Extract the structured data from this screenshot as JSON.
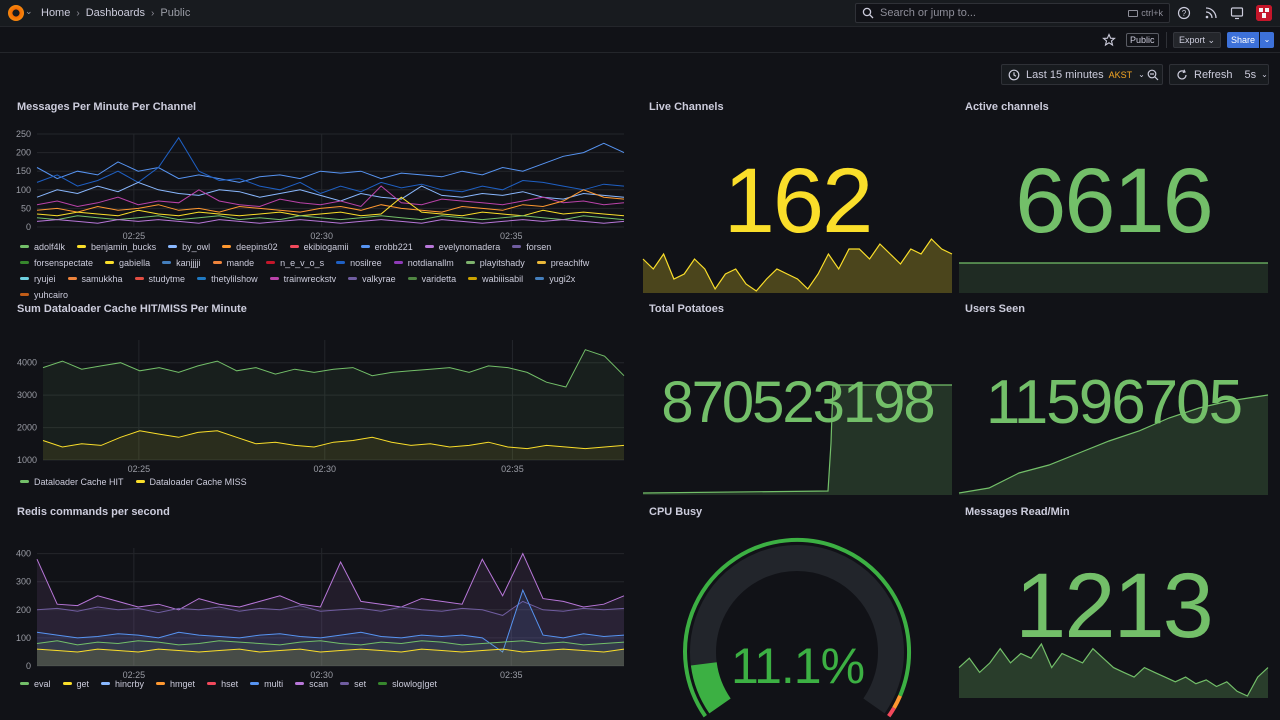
{
  "topbar": {
    "breadcrumbs": [
      "Home",
      "Dashboards",
      "Public"
    ],
    "search_placeholder": "Search or jump to...",
    "search_shortcut": "ctrl+k"
  },
  "subbar": {
    "public_badge": "Public",
    "export_label": "Export",
    "share_label": "Share"
  },
  "time_controls": {
    "range_label": "Last 15 minutes",
    "timezone": "AKST",
    "refresh_label": "Refresh",
    "refresh_interval": "5s"
  },
  "colors": {
    "green": "#73bf69",
    "yellow": "#fade2a",
    "orange": "#ff9830",
    "red": "#f2495c",
    "blue": "#5794f2",
    "purple": "#b877d9"
  },
  "panels": {
    "messages": {
      "title": "Messages Per Minute Per Channel",
      "legend": [
        {
          "name": "adolf4lk",
          "color": "#73bf69"
        },
        {
          "name": "benjamin_bucks",
          "color": "#fade2a"
        },
        {
          "name": "by_owl",
          "color": "#8ab8ff"
        },
        {
          "name": "deepins02",
          "color": "#ff9830"
        },
        {
          "name": "ekibiogamii",
          "color": "#f2495c"
        },
        {
          "name": "erobb221",
          "color": "#5794f2"
        },
        {
          "name": "evelynomadera",
          "color": "#b877d9"
        },
        {
          "name": "forsen",
          "color": "#705da0"
        },
        {
          "name": "forsenspectate",
          "color": "#37872d"
        },
        {
          "name": "gabiella",
          "color": "#fade2a"
        },
        {
          "name": "kanjjjji",
          "color": "#447ebc"
        },
        {
          "name": "mande",
          "color": "#ef843c"
        },
        {
          "name": "n_e_v_o_s",
          "color": "#c4162a"
        },
        {
          "name": "nosilree",
          "color": "#1f60c4"
        },
        {
          "name": "notdianallm",
          "color": "#8f3bb8"
        },
        {
          "name": "playitshady",
          "color": "#7eb26d"
        },
        {
          "name": "preachlfw",
          "color": "#eab839"
        },
        {
          "name": "ryujei",
          "color": "#6ed0e0"
        },
        {
          "name": "samukkha",
          "color": "#ef843c"
        },
        {
          "name": "studytme",
          "color": "#e24d42"
        },
        {
          "name": "thetylilshow",
          "color": "#1f78c1"
        },
        {
          "name": "trainwreckstv",
          "color": "#ba43a9"
        },
        {
          "name": "valkyrae",
          "color": "#705da0"
        },
        {
          "name": "varidetta",
          "color": "#508642"
        },
        {
          "name": "wabiiisabil",
          "color": "#cca300"
        },
        {
          "name": "yugi2x",
          "color": "#447ebc"
        },
        {
          "name": "yuhcairo",
          "color": "#c15c17"
        }
      ]
    },
    "dataloader": {
      "title": "Sum Dataloader Cache HIT/MISS Per Minute",
      "legend": [
        {
          "name": "Dataloader Cache HIT",
          "color": "#73bf69"
        },
        {
          "name": "Dataloader Cache MISS",
          "color": "#fade2a"
        }
      ]
    },
    "redis": {
      "title": "Redis commands per second",
      "legend": [
        {
          "name": "eval",
          "color": "#73bf69"
        },
        {
          "name": "get",
          "color": "#fade2a"
        },
        {
          "name": "hincrby",
          "color": "#8ab8ff"
        },
        {
          "name": "hmget",
          "color": "#ff9830"
        },
        {
          "name": "hset",
          "color": "#f2495c"
        },
        {
          "name": "multi",
          "color": "#5794f2"
        },
        {
          "name": "scan",
          "color": "#b877d9"
        },
        {
          "name": "set",
          "color": "#705da0"
        },
        {
          "name": "slowlog|get",
          "color": "#37872d"
        }
      ]
    },
    "live_channels": {
      "title": "Live Channels",
      "value": "162"
    },
    "active_channels": {
      "title": "Active channels",
      "value": "6616"
    },
    "total_potatoes": {
      "title": "Total Potatoes",
      "value": "870523198"
    },
    "users_seen": {
      "title": "Users Seen",
      "value": "11596705"
    },
    "cpu_busy": {
      "title": "CPU Busy",
      "value": "11.1%",
      "fraction": 0.111
    },
    "messages_read": {
      "title": "Messages Read/Min",
      "value": "1213"
    }
  },
  "chart_data": [
    {
      "type": "line",
      "title": "Messages Per Minute Per Channel",
      "x_ticks": [
        "02:25",
        "02:30",
        "02:35"
      ],
      "ylim": [
        0,
        250
      ],
      "y_ticks": [
        0,
        50,
        100,
        150,
        200,
        250
      ],
      "series": [
        {
          "name": "erobb221",
          "values": [
            160,
            130,
            150,
            140,
            175,
            150,
            160,
            130,
            140,
            130,
            120,
            135,
            140,
            130,
            150,
            145,
            150,
            130,
            145,
            140,
            135,
            150,
            140,
            160,
            150,
            170,
            190,
            200,
            225,
            200
          ]
        },
        {
          "name": "nosilree",
          "values": [
            120,
            140,
            110,
            125,
            150,
            120,
            160,
            240,
            150,
            125,
            130,
            110,
            100,
            120,
            90,
            110,
            95,
            120,
            105,
            115,
            100,
            95,
            110,
            100,
            125,
            120,
            110,
            100,
            115,
            110
          ]
        },
        {
          "name": "by_owl",
          "values": [
            80,
            100,
            90,
            110,
            95,
            120,
            100,
            90,
            85,
            100,
            95,
            80,
            90,
            100,
            85,
            70,
            90,
            80,
            75,
            110,
            85,
            80,
            90,
            85,
            95,
            80,
            75,
            90,
            85,
            80
          ]
        },
        {
          "name": "trainwreckstv",
          "values": [
            60,
            70,
            55,
            65,
            80,
            60,
            70,
            65,
            100,
            70,
            60,
            55,
            75,
            65,
            60,
            70,
            55,
            110,
            65,
            60,
            75,
            70,
            65,
            60,
            70,
            80,
            65,
            70,
            60,
            65
          ]
        },
        {
          "name": "deepins02",
          "values": [
            45,
            50,
            40,
            55,
            45,
            50,
            60,
            45,
            50,
            40,
            55,
            50,
            45,
            40,
            50,
            55,
            45,
            60,
            50,
            45,
            40,
            55,
            50,
            45,
            60,
            55,
            70,
            100,
            80,
            75
          ]
        },
        {
          "name": "benjamin_bucks",
          "values": [
            35,
            30,
            40,
            35,
            30,
            45,
            35,
            30,
            40,
            35,
            30,
            35,
            40,
            30,
            35,
            40,
            30,
            35,
            80,
            40,
            35,
            30,
            40,
            35,
            30,
            45,
            35,
            40,
            35,
            30
          ]
        },
        {
          "name": "adolf4lk",
          "values": [
            25,
            20,
            30,
            25,
            20,
            25,
            30,
            20,
            25,
            30,
            20,
            25,
            20,
            30,
            25,
            20,
            25,
            30,
            25,
            20,
            30,
            25,
            20,
            25,
            30,
            25,
            20,
            30,
            25,
            20
          ]
        },
        {
          "name": "evelynomadera",
          "values": [
            15,
            20,
            15,
            10,
            20,
            15,
            20,
            15,
            10,
            20,
            15,
            10,
            15,
            20,
            15,
            10,
            15,
            20,
            15,
            10,
            20,
            15,
            10,
            15,
            20,
            15,
            20,
            15,
            10,
            15
          ]
        }
      ]
    },
    {
      "type": "area",
      "title": "Sum Dataloader Cache HIT/MISS Per Minute",
      "x_ticks": [
        "02:25",
        "02:30",
        "02:35"
      ],
      "ylim": [
        1000,
        4700
      ],
      "y_ticks": [
        1000,
        2000,
        3000,
        4000
      ],
      "series": [
        {
          "name": "Dataloader Cache HIT",
          "values": [
            3850,
            4050,
            3800,
            3900,
            4000,
            3750,
            3850,
            3700,
            3900,
            4050,
            3750,
            3850,
            3650,
            3800,
            3700,
            3800,
            3850,
            3600,
            3700,
            3750,
            3800,
            3850,
            3700,
            3900,
            3850,
            3700,
            3400,
            3250,
            4400,
            4200,
            3600
          ]
        },
        {
          "name": "Dataloader Cache MISS",
          "values": [
            1600,
            1400,
            1500,
            1450,
            1700,
            1900,
            1800,
            1700,
            1850,
            1900,
            1700,
            1500,
            1550,
            1450,
            1400,
            1550,
            1600,
            1700,
            1550,
            1450,
            1500,
            1400,
            1450,
            1550,
            1400,
            1350,
            1450,
            1400,
            1350,
            1400,
            1450
          ]
        }
      ]
    },
    {
      "type": "area",
      "title": "Redis commands per second",
      "x_ticks": [
        "02:25",
        "02:30",
        "02:35"
      ],
      "ylim": [
        0,
        420
      ],
      "y_ticks": [
        0,
        100,
        200,
        300,
        400
      ],
      "series": [
        {
          "name": "scan",
          "values": [
            380,
            220,
            215,
            250,
            230,
            210,
            220,
            200,
            240,
            220,
            210,
            230,
            250,
            220,
            210,
            370,
            230,
            220,
            210,
            240,
            230,
            220,
            380,
            250,
            400,
            240,
            230,
            210,
            220,
            250
          ]
        },
        {
          "name": "set",
          "values": [
            200,
            205,
            195,
            210,
            200,
            205,
            190,
            205,
            200,
            210,
            195,
            205,
            200,
            215,
            195,
            200,
            205,
            195,
            210,
            200,
            195,
            205,
            200,
            180,
            230,
            200,
            195,
            205,
            200,
            205
          ]
        },
        {
          "name": "multi",
          "values": [
            120,
            110,
            100,
            105,
            115,
            110,
            100,
            120,
            110,
            105,
            100,
            110,
            115,
            105,
            100,
            110,
            120,
            105,
            100,
            110,
            105,
            110,
            100,
            50,
            270,
            110,
            100,
            115,
            105,
            110
          ]
        },
        {
          "name": "eval",
          "values": [
            80,
            90,
            75,
            85,
            80,
            90,
            85,
            75,
            80,
            90,
            85,
            80,
            75,
            85,
            90,
            80,
            75,
            85,
            80,
            90,
            85,
            75,
            80,
            85,
            90,
            80,
            85,
            75,
            80,
            85
          ]
        },
        {
          "name": "get",
          "values": [
            60,
            55,
            50,
            60,
            55,
            50,
            60,
            55,
            50,
            55,
            60,
            50,
            55,
            60,
            50,
            55,
            60,
            55,
            50,
            60,
            55,
            50,
            55,
            60,
            50,
            55,
            60,
            55,
            50,
            60
          ]
        }
      ]
    }
  ]
}
